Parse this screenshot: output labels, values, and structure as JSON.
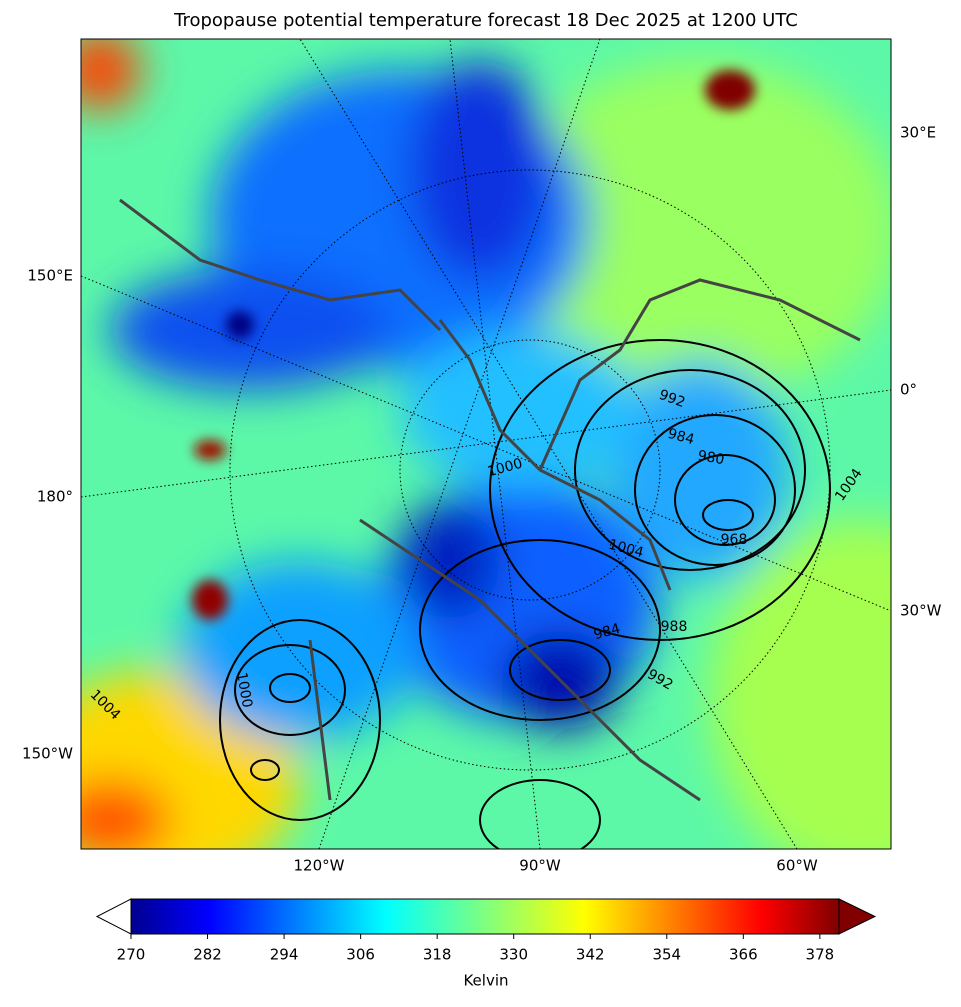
{
  "title": "Tropopause potential temperature forecast 18 Dec 2025 at 1200 UTC",
  "map": {
    "left_labels": [
      "150°E",
      "180°",
      "150°W"
    ],
    "right_labels": [
      "30°E",
      "0°",
      "30°W"
    ],
    "bottom_labels": [
      "120°W",
      "90°W",
      "60°W"
    ],
    "contour_labels": [
      "992",
      "984",
      "980",
      "968",
      "1004",
      "1000",
      "984",
      "988",
      "1004",
      "1000",
      "1004",
      "992"
    ]
  },
  "colorbar": {
    "clim": [
      270,
      381
    ],
    "ticks": [
      270,
      282,
      294,
      306,
      318,
      330,
      342,
      354,
      366,
      378
    ],
    "label": "Kelvin"
  }
}
